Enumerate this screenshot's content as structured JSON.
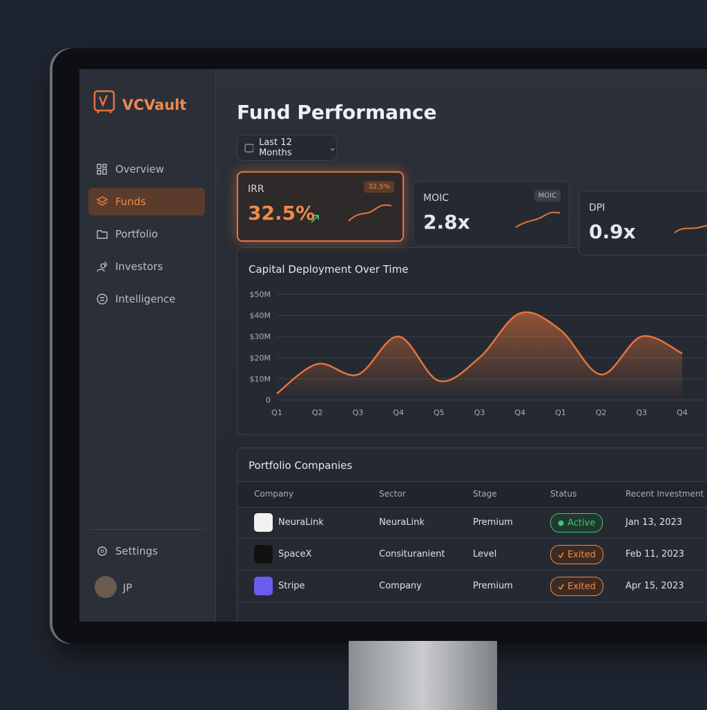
{
  "brand": "VCVault",
  "nav": [
    "Overview",
    "Funds",
    "Portfolio",
    "Investors",
    "Intelligence"
  ],
  "settings": "Settings",
  "user": "JP",
  "page_title": "Fund Performance",
  "filter": "Last 12 Months",
  "kpis": [
    {
      "label": "IRR",
      "value": "32.5%",
      "badge": "32.5%"
    },
    {
      "label": "MOIC",
      "value": "2.8x",
      "badge": "MOIC"
    },
    {
      "label": "DPI",
      "value": "0.9x"
    }
  ],
  "chart_data": {
    "type": "area",
    "title": "Capital Deployment Over Time",
    "categories": [
      "Q1",
      "Q2",
      "Q3",
      "Q4",
      "Q5",
      "Q3",
      "Q4",
      "Q1",
      "Q2",
      "Q3",
      "Q4"
    ],
    "values": [
      3,
      17,
      12,
      30,
      9,
      20,
      41,
      33,
      12,
      30,
      22
    ],
    "color": "#e8743b",
    "ylim": [
      0,
      50
    ],
    "yticks": [
      0,
      {
        "value": 10,
        "label": "$10M"
      },
      {
        "value": 20,
        "label": "$20M"
      },
      {
        "value": 30,
        "label": "$30M"
      },
      {
        "value": 40,
        "label": "$40M"
      },
      {
        "value": 50,
        "label": "$50M"
      }
    ],
    "grid": true
  },
  "table": {
    "title": "Portfolio Companies",
    "columns": [
      "Company",
      "Sector",
      "Stage",
      "Status",
      "Recent Investment"
    ],
    "rows": [
      [
        "NeuraLink",
        "NeuraLink",
        "Premium",
        "Active",
        "Jan 13, 2023"
      ],
      [
        "SpaceX",
        "Consituranient",
        "Level",
        "Exited",
        "Feb 11, 2023"
      ],
      [
        "Stripe",
        "Company",
        "Premium",
        "Exited",
        "Apr 15, 2023"
      ]
    ]
  }
}
